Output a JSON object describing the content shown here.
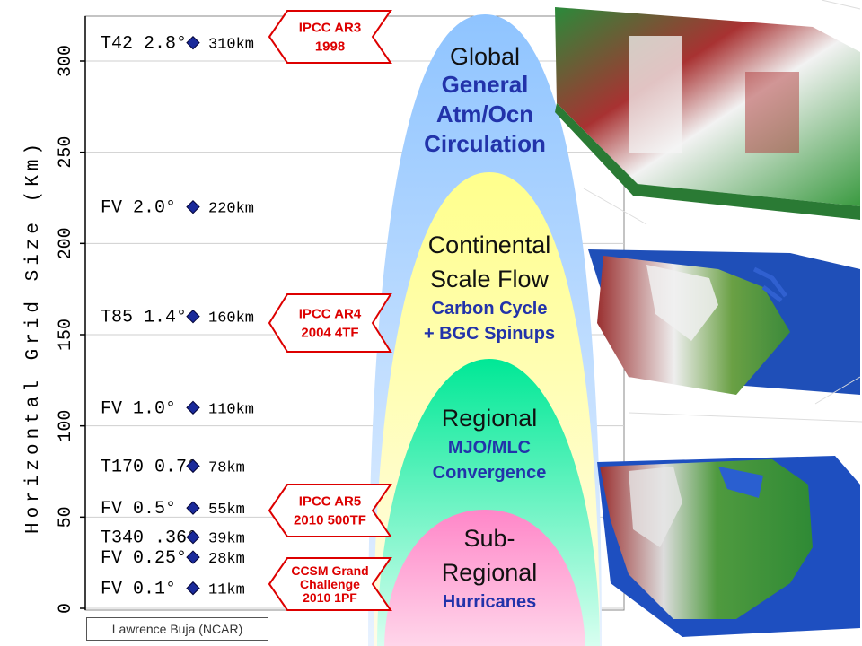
{
  "chart_data": {
    "type": "scatter",
    "ylabel": "Horizontal Grid Size (Km)",
    "ylim": [
      0,
      325
    ],
    "yticks": [
      0,
      50,
      100,
      150,
      200,
      250,
      300
    ],
    "grid": true,
    "points": [
      {
        "label": "T42  2.8°",
        "km_label": "310km",
        "y": 310
      },
      {
        "label": "FV  2.0°",
        "km_label": "220km",
        "y": 220
      },
      {
        "label": "T85  1.4°",
        "km_label": "160km",
        "y": 160
      },
      {
        "label": "FV   1.0°",
        "km_label": "110km",
        "y": 110
      },
      {
        "label": "T170 0.7°",
        "km_label": "78km",
        "y": 78
      },
      {
        "label": "FV  0.5°",
        "km_label": "55km",
        "y": 55
      },
      {
        "label": "T340 .36°",
        "km_label": "39km",
        "y": 39
      },
      {
        "label": "FV 0.25°",
        "km_label": "28km",
        "y": 28
      },
      {
        "label": "FV  0.1°",
        "km_label": "11km",
        "y": 11
      }
    ],
    "milestones": [
      {
        "lines": [
          "IPCC AR3",
          "1998"
        ],
        "at_km": 310
      },
      {
        "lines": [
          "IPCC AR4",
          "2004  4TF"
        ],
        "at_km": 160
      },
      {
        "lines": [
          "IPCC AR5",
          "2010 500TF"
        ],
        "at_km": 55
      },
      {
        "lines": [
          "CCSM Grand",
          "Challenge",
          "2010 1PF"
        ],
        "at_km": 11
      }
    ],
    "regions": [
      {
        "title": [
          "Global"
        ],
        "subtitle": [
          "General",
          "Atm/Ocn",
          "Circulation"
        ],
        "color": "#99ccff"
      },
      {
        "title": [
          "Continental",
          "Scale Flow"
        ],
        "subtitle": [
          "Carbon Cycle",
          "+ BGC Spinups"
        ],
        "color": "#ffff99"
      },
      {
        "title": [
          "Regional"
        ],
        "subtitle": [
          "MJO/MLC",
          "Convergence"
        ],
        "color": "#00ee99"
      },
      {
        "title": [
          "Sub-",
          "Regional"
        ],
        "subtitle": [
          "Hurricanes"
        ],
        "color": "#ff88cc"
      }
    ],
    "colors": {
      "marker": "#1a2a9a",
      "milestone": "#dd0000",
      "title_text": "#111111",
      "subtitle_text": "#2233aa"
    }
  },
  "credit": "Lawrence Buja (NCAR)"
}
